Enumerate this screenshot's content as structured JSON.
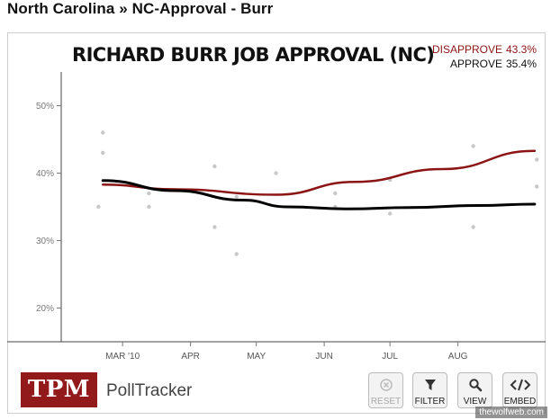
{
  "header": {
    "title": "North Carolina » NC-Approval - Burr"
  },
  "brand": {
    "logo_text": "TPM",
    "product": "PollTracker"
  },
  "toolbar": {
    "buttons": [
      {
        "label": "RESET",
        "icon": "reset-icon",
        "enabled": false
      },
      {
        "label": "FILTER",
        "icon": "filter-icon",
        "enabled": true
      },
      {
        "label": "VIEW",
        "icon": "magnifier-icon",
        "enabled": true
      },
      {
        "label": "EMBED",
        "icon": "code-icon",
        "enabled": true
      }
    ]
  },
  "watermark": "thewolfweb.com",
  "colors": {
    "disapprove": "#8b1414",
    "approve": "#000000",
    "points": "#c8c8c8",
    "brand": "#931a1a"
  },
  "chart_data": {
    "type": "line",
    "title": "RICHARD BURR JOB APPROVAL (NC)",
    "legend": [
      {
        "name": "DISAPPROVE",
        "value": "43.3%"
      },
      {
        "name": "APPROVE",
        "value": "35.4%"
      }
    ],
    "legend_position": "top-right",
    "yticks": [
      "20%",
      "30%",
      "40%",
      "50%"
    ],
    "ytick_values": [
      20,
      30,
      40,
      50
    ],
    "ylim": [
      15,
      55
    ],
    "xticks": [
      "MAR '10",
      "APR",
      "MAY",
      "JUN",
      "JUL",
      "AUG"
    ],
    "xtick_values": [
      "2010-03-01",
      "2010-04-01",
      "2010-05-01",
      "2010-06-01",
      "2010-07-01",
      "2010-08-01"
    ],
    "xlim": [
      "2010-02-01",
      "2010-09-10"
    ],
    "grid": false,
    "series": [
      {
        "name": "DISAPPROVE",
        "x": [
          "2010-02-20",
          "2010-03-25",
          "2010-05-10",
          "2010-06-15",
          "2010-07-25",
          "2010-09-05"
        ],
        "values": [
          38.3,
          37.6,
          36.8,
          38.7,
          40.6,
          43.3
        ]
      },
      {
        "name": "APPROVE",
        "x": [
          "2010-02-20",
          "2010-03-25",
          "2010-04-25",
          "2010-05-15",
          "2010-06-12",
          "2010-07-10",
          "2010-08-10",
          "2010-09-05"
        ],
        "values": [
          38.9,
          37.4,
          36.0,
          35.0,
          34.7,
          34.9,
          35.2,
          35.4
        ]
      }
    ],
    "points": [
      {
        "x": "2010-02-18",
        "y": 35
      },
      {
        "x": "2010-02-20",
        "y": 46
      },
      {
        "x": "2010-02-20",
        "y": 43
      },
      {
        "x": "2010-03-13",
        "y": 37
      },
      {
        "x": "2010-03-13",
        "y": 35
      },
      {
        "x": "2010-04-12",
        "y": 41
      },
      {
        "x": "2010-04-12",
        "y": 32
      },
      {
        "x": "2010-04-22",
        "y": 36.5
      },
      {
        "x": "2010-04-22",
        "y": 28
      },
      {
        "x": "2010-05-10",
        "y": 40
      },
      {
        "x": "2010-06-06",
        "y": 37
      },
      {
        "x": "2010-06-06",
        "y": 35
      },
      {
        "x": "2010-07-01",
        "y": 39
      },
      {
        "x": "2010-07-01",
        "y": 34
      },
      {
        "x": "2010-08-08",
        "y": 44
      },
      {
        "x": "2010-08-08",
        "y": 32
      },
      {
        "x": "2010-09-06",
        "y": 42
      },
      {
        "x": "2010-09-06",
        "y": 38
      }
    ]
  }
}
